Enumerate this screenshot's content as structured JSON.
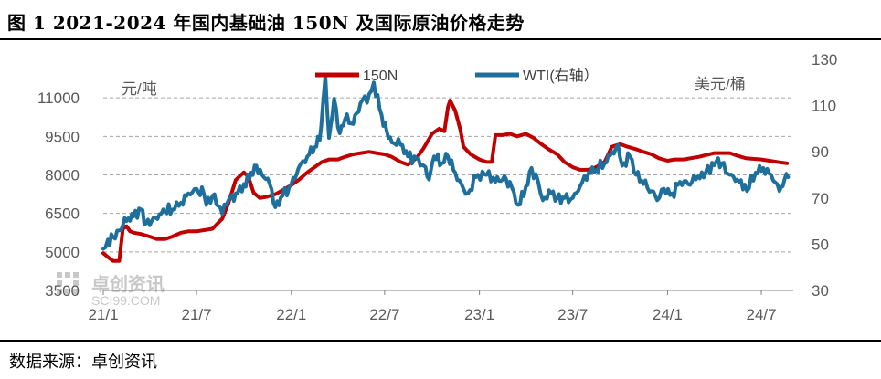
{
  "title": "图 1 2021-2024 年国内基础油 150N 及国际原油价格走势",
  "source": "数据来源：卓创资讯",
  "watermark": {
    "brand": "卓创资讯",
    "site": "SCI99.COM"
  },
  "colors": {
    "series_150N": "#c00000",
    "series_wti": "#1f6f9c",
    "grid": "#a6a6a6",
    "axis": "#595959"
  },
  "chart_data": {
    "type": "line",
    "xlabel": "",
    "x_ticks": [
      "21/1",
      "21/7",
      "22/1",
      "22/7",
      "23/1",
      "23/7",
      "24/1",
      "24/7"
    ],
    "y_left": {
      "unit": "元/吨",
      "ylim": [
        3500,
        12500
      ],
      "ticks": [
        3500,
        5000,
        6500,
        8000,
        9500,
        11000
      ]
    },
    "y_right": {
      "unit": "美元/桶",
      "ylim": [
        30,
        130
      ],
      "ticks": [
        30,
        50,
        70,
        90,
        110,
        130
      ]
    },
    "grid": "horizontal dashed",
    "legend": "top-center",
    "series": [
      {
        "name": "150N",
        "axis": "left",
        "points": [
          [
            "2021-01-01",
            4950
          ],
          [
            "2021-01-10",
            4800
          ],
          [
            "2021-01-20",
            4650
          ],
          [
            "2021-02-01",
            4650
          ],
          [
            "2021-02-08",
            5900
          ],
          [
            "2021-02-15",
            6000
          ],
          [
            "2021-02-22",
            5800
          ],
          [
            "2021-03-01",
            5750
          ],
          [
            "2021-03-15",
            5700
          ],
          [
            "2021-04-01",
            5600
          ],
          [
            "2021-04-15",
            5500
          ],
          [
            "2021-05-01",
            5500
          ],
          [
            "2021-05-15",
            5600
          ],
          [
            "2021-06-01",
            5750
          ],
          [
            "2021-06-15",
            5800
          ],
          [
            "2021-07-01",
            5800
          ],
          [
            "2021-08-01",
            5900
          ],
          [
            "2021-08-20",
            6300
          ],
          [
            "2021-09-01",
            6900
          ],
          [
            "2021-09-15",
            7800
          ],
          [
            "2021-10-01",
            8100
          ],
          [
            "2021-10-10",
            7900
          ],
          [
            "2021-10-20",
            7300
          ],
          [
            "2021-11-01",
            7100
          ],
          [
            "2021-11-15",
            7150
          ],
          [
            "2021-12-01",
            7250
          ],
          [
            "2021-12-15",
            7400
          ],
          [
            "2022-01-01",
            7600
          ],
          [
            "2022-01-15",
            7800
          ],
          [
            "2022-02-01",
            8100
          ],
          [
            "2022-02-15",
            8300
          ],
          [
            "2022-03-01",
            8500
          ],
          [
            "2022-03-15",
            8600
          ],
          [
            "2022-04-01",
            8600
          ],
          [
            "2022-04-15",
            8700
          ],
          [
            "2022-05-01",
            8800
          ],
          [
            "2022-06-01",
            8900
          ],
          [
            "2022-06-15",
            8850
          ],
          [
            "2022-07-01",
            8800
          ],
          [
            "2022-07-15",
            8700
          ],
          [
            "2022-08-01",
            8500
          ],
          [
            "2022-08-15",
            8400
          ],
          [
            "2022-09-01",
            8650
          ],
          [
            "2022-09-15",
            9050
          ],
          [
            "2022-10-01",
            9600
          ],
          [
            "2022-10-15",
            9800
          ],
          [
            "2022-10-25",
            9700
          ],
          [
            "2022-11-01",
            10650
          ],
          [
            "2022-11-05",
            10900
          ],
          [
            "2022-11-15",
            10500
          ],
          [
            "2022-11-25",
            9750
          ],
          [
            "2022-12-01",
            9100
          ],
          [
            "2022-12-15",
            8800
          ],
          [
            "2023-01-01",
            8600
          ],
          [
            "2023-01-15",
            8500
          ],
          [
            "2023-01-25",
            8500
          ],
          [
            "2023-02-01",
            9550
          ],
          [
            "2023-02-15",
            9550
          ],
          [
            "2023-03-01",
            9600
          ],
          [
            "2023-03-15",
            9500
          ],
          [
            "2023-04-01",
            9600
          ],
          [
            "2023-04-15",
            9450
          ],
          [
            "2023-05-01",
            9200
          ],
          [
            "2023-05-15",
            9000
          ],
          [
            "2023-06-01",
            8800
          ],
          [
            "2023-06-15",
            8500
          ],
          [
            "2023-07-01",
            8300
          ],
          [
            "2023-07-15",
            8200
          ],
          [
            "2023-08-01",
            8200
          ],
          [
            "2023-08-15",
            8300
          ],
          [
            "2023-09-01",
            8500
          ],
          [
            "2023-09-15",
            9100
          ],
          [
            "2023-10-01",
            9200
          ],
          [
            "2023-10-15",
            9100
          ],
          [
            "2023-11-01",
            9000
          ],
          [
            "2023-11-15",
            8900
          ],
          [
            "2023-12-01",
            8800
          ],
          [
            "2023-12-15",
            8650
          ],
          [
            "2024-01-01",
            8550
          ],
          [
            "2024-01-15",
            8600
          ],
          [
            "2024-02-01",
            8600
          ],
          [
            "2024-03-01",
            8700
          ],
          [
            "2024-04-01",
            8850
          ],
          [
            "2024-05-01",
            8850
          ],
          [
            "2024-05-15",
            8750
          ],
          [
            "2024-06-01",
            8650
          ],
          [
            "2024-07-01",
            8600
          ],
          [
            "2024-08-01",
            8500
          ],
          [
            "2024-08-20",
            8450
          ]
        ]
      },
      {
        "name": "WTI(右轴）",
        "axis": "right",
        "points": [
          [
            "2021-01-01",
            48
          ],
          [
            "2021-01-10",
            52
          ],
          [
            "2021-01-20",
            53
          ],
          [
            "2021-02-01",
            56
          ],
          [
            "2021-02-15",
            60
          ],
          [
            "2021-03-01",
            62
          ],
          [
            "2021-03-15",
            65
          ],
          [
            "2021-03-25",
            59
          ],
          [
            "2021-04-05",
            60
          ],
          [
            "2021-04-20",
            63
          ],
          [
            "2021-05-01",
            64
          ],
          [
            "2021-05-15",
            65
          ],
          [
            "2021-06-01",
            68
          ],
          [
            "2021-06-15",
            72
          ],
          [
            "2021-07-01",
            74
          ],
          [
            "2021-07-15",
            72
          ],
          [
            "2021-07-20",
            67
          ],
          [
            "2021-08-01",
            71
          ],
          [
            "2021-08-20",
            63
          ],
          [
            "2021-09-01",
            69
          ],
          [
            "2021-09-15",
            72
          ],
          [
            "2021-10-01",
            76
          ],
          [
            "2021-10-15",
            81
          ],
          [
            "2021-10-25",
            84
          ],
          [
            "2021-11-05",
            80
          ],
          [
            "2021-11-20",
            76
          ],
          [
            "2021-12-01",
            66
          ],
          [
            "2021-12-15",
            71
          ],
          [
            "2022-01-01",
            76
          ],
          [
            "2022-01-15",
            83
          ],
          [
            "2022-02-01",
            88
          ],
          [
            "2022-02-15",
            92
          ],
          [
            "2022-02-25",
            95
          ],
          [
            "2022-03-03",
            110
          ],
          [
            "2022-03-08",
            123
          ],
          [
            "2022-03-15",
            96
          ],
          [
            "2022-03-25",
            113
          ],
          [
            "2022-04-05",
            98
          ],
          [
            "2022-04-15",
            104
          ],
          [
            "2022-05-01",
            102
          ],
          [
            "2022-05-15",
            111
          ],
          [
            "2022-06-01",
            115
          ],
          [
            "2022-06-10",
            120
          ],
          [
            "2022-06-25",
            106
          ],
          [
            "2022-07-05",
            99
          ],
          [
            "2022-07-15",
            94
          ],
          [
            "2022-08-01",
            93
          ],
          [
            "2022-08-15",
            88
          ],
          [
            "2022-09-01",
            87
          ],
          [
            "2022-09-15",
            84
          ],
          [
            "2022-09-25",
            78
          ],
          [
            "2022-10-05",
            88
          ],
          [
            "2022-10-20",
            85
          ],
          [
            "2022-11-01",
            88
          ],
          [
            "2022-11-15",
            81
          ],
          [
            "2022-12-01",
            74
          ],
          [
            "2022-12-10",
            72
          ],
          [
            "2022-12-25",
            79
          ],
          [
            "2023-01-15",
            80
          ],
          [
            "2023-02-01",
            77
          ],
          [
            "2023-02-15",
            78
          ],
          [
            "2023-03-01",
            77
          ],
          [
            "2023-03-17",
            67
          ],
          [
            "2023-04-01",
            75
          ],
          [
            "2023-04-12",
            83
          ],
          [
            "2023-04-25",
            77
          ],
          [
            "2023-05-04",
            69
          ],
          [
            "2023-05-20",
            72
          ],
          [
            "2023-06-01",
            70
          ],
          [
            "2023-06-15",
            70
          ],
          [
            "2023-07-01",
            70
          ],
          [
            "2023-07-15",
            75
          ],
          [
            "2023-08-01",
            81
          ],
          [
            "2023-08-15",
            82
          ],
          [
            "2023-09-01",
            85
          ],
          [
            "2023-09-15",
            90
          ],
          [
            "2023-09-27",
            93
          ],
          [
            "2023-10-05",
            84
          ],
          [
            "2023-10-20",
            88
          ],
          [
            "2023-11-01",
            80
          ],
          [
            "2023-11-15",
            76
          ],
          [
            "2023-12-01",
            73
          ],
          [
            "2023-12-12",
            69
          ],
          [
            "2023-12-25",
            74
          ],
          [
            "2024-01-10",
            72
          ],
          [
            "2024-01-25",
            77
          ],
          [
            "2024-02-10",
            76
          ],
          [
            "2024-02-25",
            78
          ],
          [
            "2024-03-15",
            81
          ],
          [
            "2024-04-05",
            86
          ],
          [
            "2024-04-15",
            85
          ],
          [
            "2024-05-01",
            80
          ],
          [
            "2024-05-15",
            78
          ],
          [
            "2024-06-03",
            73
          ],
          [
            "2024-06-20",
            81
          ],
          [
            "2024-07-05",
            83
          ],
          [
            "2024-07-20",
            80
          ],
          [
            "2024-08-01",
            76
          ],
          [
            "2024-08-05",
            73
          ],
          [
            "2024-08-15",
            78
          ],
          [
            "2024-08-22",
            79
          ]
        ]
      }
    ]
  }
}
